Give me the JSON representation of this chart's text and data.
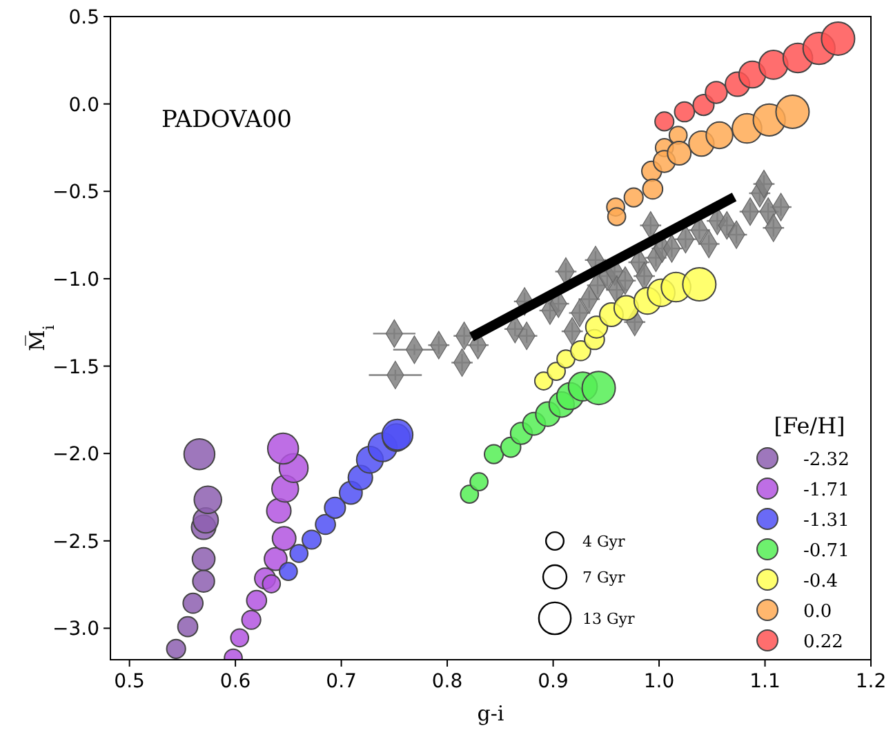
{
  "chart_data": {
    "type": "bubble",
    "xlabel": "g-i",
    "ylabel": "M̅$_{i}$",
    "annotations": [
      "PADOVA00"
    ],
    "xlim": [
      0.482,
      1.2
    ],
    "ylim": [
      -3.18,
      0.5
    ],
    "xticks": [
      0.5,
      0.6,
      0.7,
      0.8,
      0.9,
      {
        "value": 1,
        "label": "1.0"
      },
      1.1,
      1.2
    ],
    "yticks": [
      {
        "value": -3,
        "label": "−3.0"
      },
      {
        "value": -2.5,
        "label": "−2.5"
      },
      {
        "value": -2,
        "label": "−2.0"
      },
      {
        "value": -1.5,
        "label": "−1.5"
      },
      {
        "value": -1,
        "label": "−1.0"
      },
      {
        "value": -0.5,
        "label": "−0.5"
      },
      {
        "value": 0,
        "label": "0.0"
      },
      0.5
    ],
    "legend": "bottom right",
    "legend_title": "[Fe/H]",
    "grid": false,
    "size_legend": [
      {
        "value": 4,
        "label": "4 Gyr"
      },
      {
        "value": 7,
        "label": "7 Gyr"
      },
      {
        "value": 13,
        "label": "13 Gyr"
      }
    ],
    "series": [
      {
        "type": "scatter",
        "marker": "diamond",
        "color": "#808080",
        "x": [
          0.75,
          0.769,
          0.751,
          0.792,
          0.814,
          0.816,
          0.829,
          0.864,
          0.875,
          0.873,
          0.897,
          0.905,
          0.912,
          0.918,
          0.925,
          0.934,
          0.94,
          0.942,
          0.951,
          0.958,
          0.96,
          0.968,
          0.977,
          0.981,
          0.986,
          0.992,
          0.997,
          1.003,
          1.012,
          1.025,
          1.038,
          1.047,
          1.055,
          1.064,
          1.073,
          1.086,
          1.095,
          1.099,
          1.103,
          1.115,
          1.108
        ],
        "values": [
          -1.314,
          -1.406,
          -1.551,
          -1.38,
          -1.48,
          -1.327,
          -1.38,
          -1.288,
          -1.327,
          -1.13,
          -1.182,
          -1.143,
          -0.959,
          -1.301,
          -1.196,
          -1.117,
          -0.893,
          -1.038,
          -0.985,
          -0.959,
          -1.064,
          -1.011,
          -1.248,
          -0.906,
          -0.985,
          -0.695,
          -0.88,
          -0.827,
          -0.827,
          -0.774,
          -0.722,
          -0.801,
          -0.669,
          -0.695,
          -0.748,
          -0.616,
          -0.511,
          -0.458,
          -0.616,
          -0.59,
          -0.709
        ],
        "xerrors": [
          0.02,
          0.02,
          0.025,
          0.01,
          0.01,
          0.01,
          0.01,
          0.01,
          0.01,
          0.01,
          0.01,
          0.01,
          0.01,
          0.01,
          0.01,
          0.01,
          0.01,
          0.01,
          0.01,
          0.01,
          0.01,
          0.01,
          0.01,
          0.01,
          0.01,
          0.01,
          0.01,
          0.01,
          0.01,
          0.01,
          0.01,
          0.01,
          0.01,
          0.01,
          0.01,
          0.01,
          0.01,
          0.01,
          0.01,
          0.01,
          0.01
        ],
        "errors": [
          0.03,
          0.03,
          0.03,
          0.05,
          0.05,
          0.05,
          0.04,
          0.04,
          0.04,
          0.05,
          0.05,
          0.05,
          0.05,
          0.05,
          0.05,
          0.05,
          0.05,
          0.05,
          0.05,
          0.05,
          0.05,
          0.05,
          0.05,
          0.05,
          0.05,
          0.05,
          0.05,
          0.05,
          0.05,
          0.05,
          0.05,
          0.05,
          0.05,
          0.05,
          0.05,
          0.05,
          0.05,
          0.05,
          0.05,
          0.05,
          0.05
        ]
      },
      {
        "name": "-2.32",
        "color": "#8d5fb0",
        "x": [
          0.544,
          0.555,
          0.56,
          0.57,
          0.57,
          0.57,
          0.572,
          0.574,
          0.566
        ],
        "values": [
          -3.118,
          -2.991,
          -2.857,
          -2.731,
          -2.604,
          -2.422,
          -2.383,
          -2.265,
          -2.004
        ],
        "sizes": [
          4.5,
          5,
          5,
          6,
          6.5,
          7.5,
          8,
          9.5,
          12
        ]
      },
      {
        "name": "-1.71",
        "color": "#b355e0",
        "x": [
          0.598,
          0.604,
          0.615,
          0.62,
          0.628,
          0.634,
          0.638,
          0.646,
          0.641,
          0.647,
          0.655,
          0.645
        ],
        "values": [
          -3.17,
          -3.055,
          -2.952,
          -2.841,
          -2.715,
          -2.746,
          -2.604,
          -2.486,
          -2.328,
          -2.202,
          -2.083,
          -1.972
        ],
        "sizes": [
          4,
          4,
          4.5,
          5,
          5.5,
          4,
          6.5,
          7,
          7.5,
          9,
          10.5,
          12
        ]
      },
      {
        "name": "-1.31",
        "color": "#5050f5",
        "x": [
          0.65,
          0.66,
          0.672,
          0.685,
          0.694,
          0.709,
          0.718,
          0.727,
          0.739,
          0.752,
          0.753
        ],
        "values": [
          -2.675,
          -2.572,
          -2.493,
          -2.406,
          -2.311,
          -2.225,
          -2.138,
          -2.036,
          -1.964,
          -1.909,
          -1.893
        ],
        "sizes": [
          4,
          4,
          4.5,
          5,
          5.5,
          6.5,
          7.5,
          9,
          10.5,
          9.5,
          12
        ]
      },
      {
        "name": "-0.71",
        "color": "#55ee55",
        "x": [
          0.821,
          0.83,
          0.844,
          0.86,
          0.87,
          0.882,
          0.895,
          0.908,
          0.916,
          0.928,
          0.943
        ],
        "values": [
          -2.233,
          -2.162,
          -2.004,
          -1.964,
          -1.885,
          -1.83,
          -1.775,
          -1.72,
          -1.672,
          -1.617,
          -1.625
        ],
        "sizes": [
          4,
          4,
          4.5,
          5,
          6,
          6.5,
          7.5,
          8,
          9,
          10.5,
          14
        ]
      },
      {
        "name": "-0.4",
        "color": "#ffff55",
        "x": [
          0.891,
          0.903,
          0.912,
          0.926,
          0.939,
          0.941,
          0.955,
          0.969,
          0.989,
          1.002,
          1.016,
          1.038
        ],
        "values": [
          -1.585,
          -1.53,
          -1.459,
          -1.412,
          -1.348,
          -1.277,
          -1.206,
          -1.167,
          -1.127,
          -1.08,
          -1.048,
          -1.032
        ],
        "sizes": [
          4,
          4,
          4,
          5,
          5,
          6,
          7,
          7.5,
          9,
          9.5,
          11,
          14
        ]
      },
      {
        "name": "0.0",
        "color": "#ffaa55",
        "x": [
          0.959,
          0.96,
          0.976,
          0.993,
          0.994,
          1.005,
          1.005,
          1.018,
          1.019,
          1.04,
          1.057,
          1.083,
          1.104,
          1.126
        ],
        "values": [
          -0.59,
          -0.645,
          -0.535,
          -0.385,
          -0.487,
          -0.25,
          -0.329,
          -0.179,
          -0.282,
          -0.227,
          -0.179,
          -0.14,
          -0.092,
          -0.045
        ],
        "sizes": [
          4,
          4,
          4.5,
          5,
          5,
          4,
          6,
          4,
          7,
          8,
          9,
          11,
          13,
          14
        ]
      },
      {
        "name": "0.22",
        "color": "#ff5555",
        "x": [
          1.005,
          1.024,
          1.042,
          1.054,
          1.074,
          1.088,
          1.108,
          1.131,
          1.151,
          1.169
        ],
        "values": [
          -0.1,
          -0.045,
          -0.006,
          0.066,
          0.113,
          0.168,
          0.224,
          0.263,
          0.318,
          0.374
        ],
        "sizes": [
          4.5,
          5,
          5.5,
          6,
          7.5,
          9,
          10.5,
          11,
          13,
          14
        ]
      },
      {
        "type": "line",
        "color": "#000000",
        "line_style": "solid",
        "x": [
          0.823,
          1.071
        ],
        "values": [
          -1.333,
          -0.532
        ]
      }
    ]
  }
}
